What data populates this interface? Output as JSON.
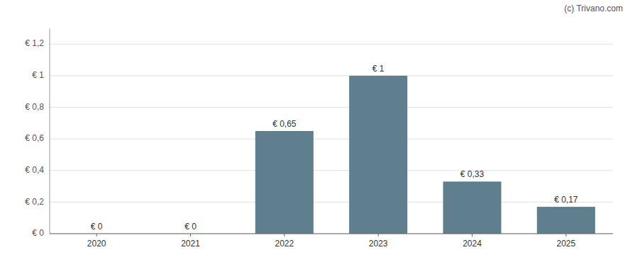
{
  "chart_data": {
    "type": "bar",
    "categories": [
      "2020",
      "2021",
      "2022",
      "2023",
      "2024",
      "2025"
    ],
    "values": [
      0,
      0,
      0.65,
      1.0,
      0.33,
      0.17
    ],
    "value_labels": [
      "€ 0",
      "€ 0",
      "€ 0,65",
      "€ 1",
      "€ 0,33",
      "€ 0,17"
    ],
    "data_labels": true,
    "color": "#5f7f8e",
    "ylim": [
      0,
      1.3
    ],
    "yticks": [
      {
        "value": 0,
        "label": "€ 0"
      },
      {
        "value": 0.2,
        "label": "€ 0,2"
      },
      {
        "value": 0.4,
        "label": "€ 0,4"
      },
      {
        "value": 0.6,
        "label": "€ 0,6"
      },
      {
        "value": 0.8,
        "label": "€ 0,8"
      },
      {
        "value": 1.0,
        "label": "€ 1"
      },
      {
        "value": 1.2,
        "label": "€ 1,2"
      }
    ],
    "grid": true,
    "annotations": [
      "(c) Trivano.com"
    ]
  }
}
